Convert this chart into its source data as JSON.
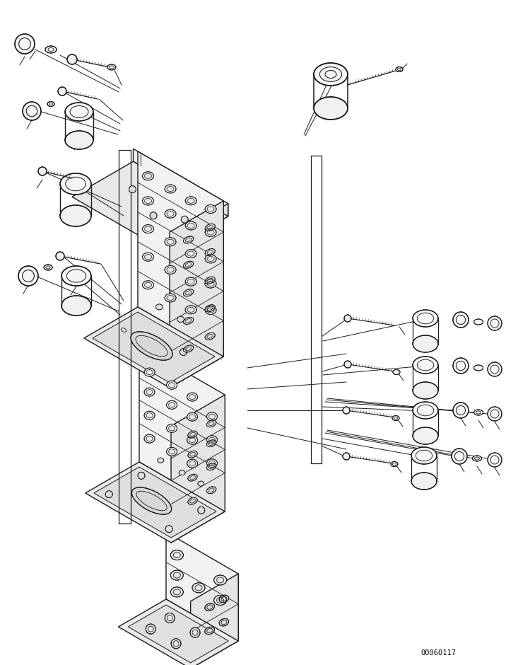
{
  "background_color": "#ffffff",
  "line_color": "#1a1a1a",
  "watermark": "00060117",
  "figure_width": 7.16,
  "figure_height": 9.4
}
